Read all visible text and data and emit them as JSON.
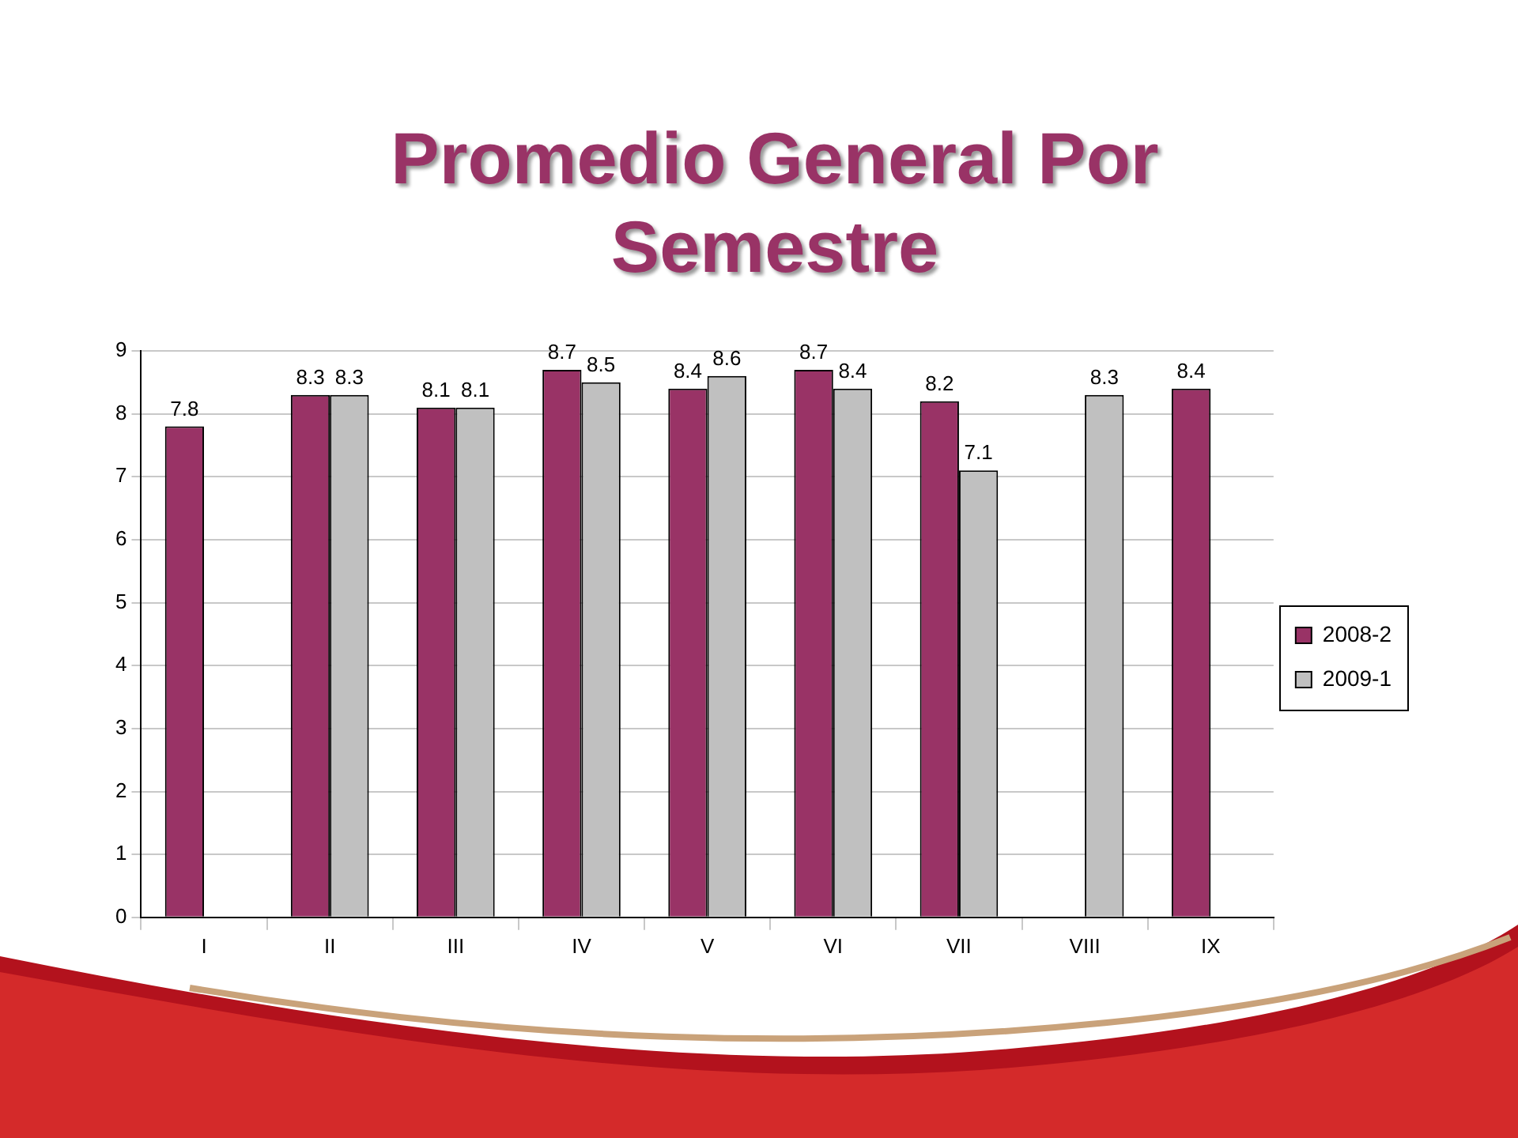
{
  "chart_data": {
    "type": "bar",
    "title": "Promedio General Por Semestre",
    "categories": [
      "I",
      "II",
      "III",
      "IV",
      "V",
      "VI",
      "VII",
      "VIII",
      "IX"
    ],
    "series": [
      {
        "name": "2008-2",
        "color": "#993366",
        "values": [
          7.8,
          8.3,
          8.1,
          8.7,
          8.4,
          8.7,
          8.2,
          null,
          8.4
        ]
      },
      {
        "name": "2009-1",
        "color": "#c0c0c0",
        "values": [
          null,
          8.3,
          8.1,
          8.5,
          8.6,
          8.4,
          7.1,
          8.3,
          null
        ]
      }
    ],
    "ylim": [
      0,
      9
    ],
    "yticks": [
      0,
      1,
      2,
      3,
      4,
      5,
      6,
      7,
      8,
      9
    ],
    "grid": "y",
    "legend": "right",
    "data_labels": true
  }
}
